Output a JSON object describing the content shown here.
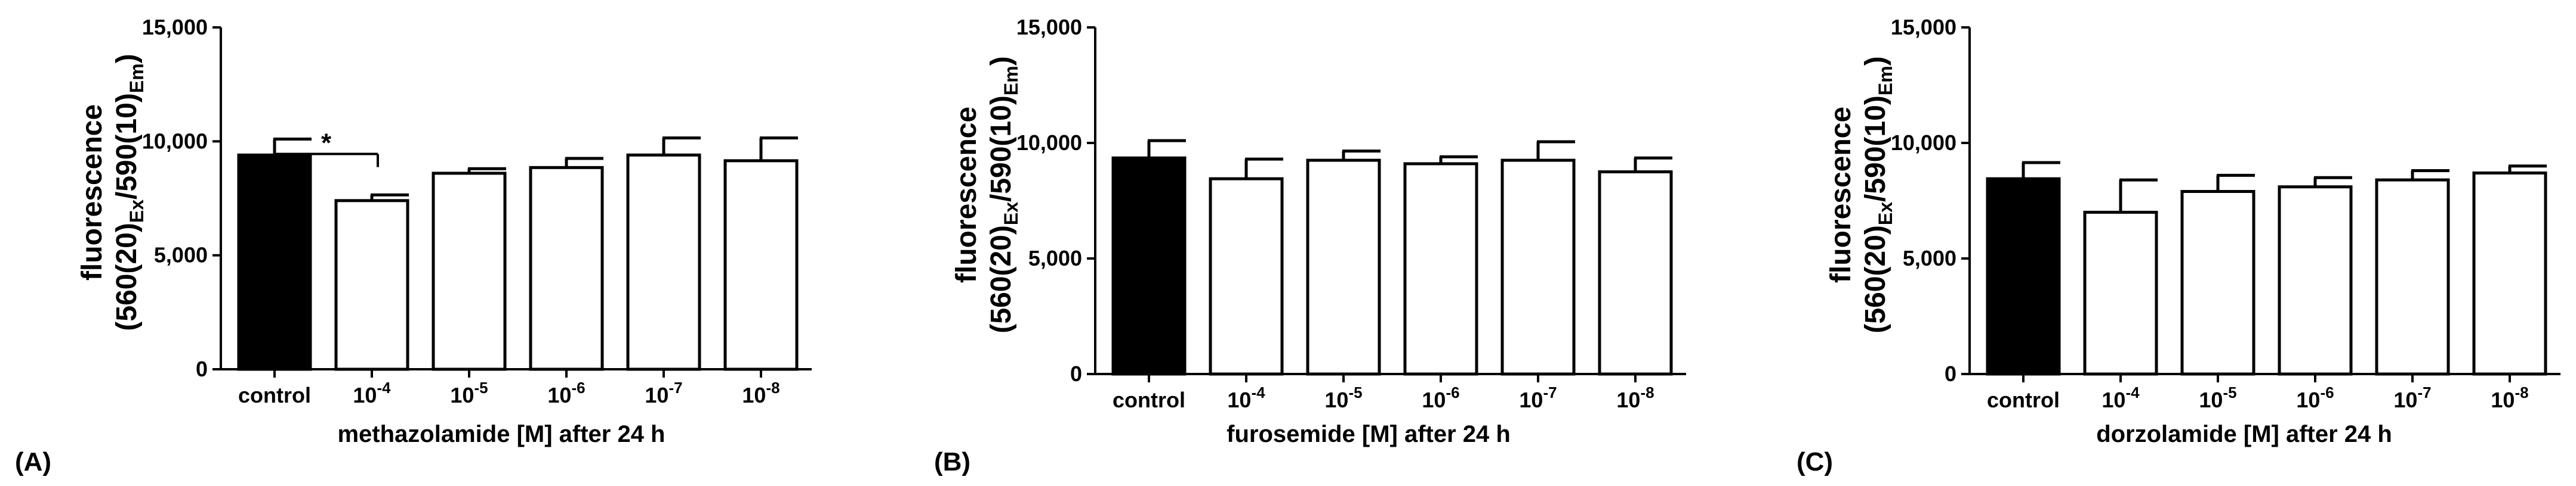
{
  "chart_data": [
    {
      "type": "bar",
      "panel_label": "(A)",
      "categories": [
        "control",
        "10^-4",
        "10^-5",
        "10^-6",
        "10^-7",
        "10^-8"
      ],
      "category_labels": [
        {
          "base": "control",
          "exp": ""
        },
        {
          "base": "10",
          "exp": "-4"
        },
        {
          "base": "10",
          "exp": "-5"
        },
        {
          "base": "10",
          "exp": "-6"
        },
        {
          "base": "10",
          "exp": "-7"
        },
        {
          "base": "10",
          "exp": "-8"
        }
      ],
      "values": [
        9400,
        7400,
        8600,
        8850,
        9400,
        9150
      ],
      "errors": [
        700,
        250,
        200,
        400,
        750,
        1000
      ],
      "bar_colors": [
        "#000000",
        "#ffffff",
        "#ffffff",
        "#ffffff",
        "#ffffff",
        "#ffffff"
      ],
      "xlabel": "methazolamide [M]  after 24 h",
      "ylabel_line1": "fluorescence",
      "ylabel_line2": {
        "a": "(560(20)",
        "a_sub": "Ex",
        "b": "/590(10)",
        "b_sub": "Em",
        "c": ")"
      },
      "ylim": [
        0,
        15000
      ],
      "yticks": [
        0,
        5000,
        10000,
        15000
      ],
      "ytick_labels": [
        "0",
        "5,000",
        "10,000",
        "15,000"
      ],
      "significance": [
        {
          "from": 0,
          "to": 1,
          "label": "*"
        }
      ]
    },
    {
      "type": "bar",
      "panel_label": "(B)",
      "categories": [
        "control",
        "10^-4",
        "10^-5",
        "10^-6",
        "10^-7",
        "10^-8"
      ],
      "category_labels": [
        {
          "base": "control",
          "exp": ""
        },
        {
          "base": "10",
          "exp": "-4"
        },
        {
          "base": "10",
          "exp": "-5"
        },
        {
          "base": "10",
          "exp": "-6"
        },
        {
          "base": "10",
          "exp": "-7"
        },
        {
          "base": "10",
          "exp": "-8"
        }
      ],
      "values": [
        9350,
        8450,
        9250,
        9100,
        9250,
        8750
      ],
      "errors": [
        750,
        850,
        400,
        300,
        800,
        600
      ],
      "bar_colors": [
        "#000000",
        "#ffffff",
        "#ffffff",
        "#ffffff",
        "#ffffff",
        "#ffffff"
      ],
      "xlabel": "furosemide [M] after 24 h",
      "ylabel_line1": "fluorescence",
      "ylabel_line2": {
        "a": "(560(20)",
        "a_sub": "Ex",
        "b": "/590(10)",
        "b_sub": "Em",
        "c": ")"
      },
      "ylim": [
        0,
        15000
      ],
      "yticks": [
        0,
        5000,
        10000,
        15000
      ],
      "ytick_labels": [
        "0",
        "5,000",
        "10,000",
        "15,000"
      ],
      "significance": []
    },
    {
      "type": "bar",
      "panel_label": "(C)",
      "categories": [
        "control",
        "10^-4",
        "10^-5",
        "10^-6",
        "10^-7",
        "10^-8"
      ],
      "category_labels": [
        {
          "base": "control",
          "exp": ""
        },
        {
          "base": "10",
          "exp": "-4"
        },
        {
          "base": "10",
          "exp": "-5"
        },
        {
          "base": "10",
          "exp": "-6"
        },
        {
          "base": "10",
          "exp": "-7"
        },
        {
          "base": "10",
          "exp": "-8"
        }
      ],
      "values": [
        8450,
        7000,
        7900,
        8100,
        8400,
        8700
      ],
      "errors": [
        700,
        1400,
        700,
        400,
        400,
        300
      ],
      "bar_colors": [
        "#000000",
        "#ffffff",
        "#ffffff",
        "#ffffff",
        "#ffffff",
        "#ffffff"
      ],
      "xlabel": "dorzolamide [M] after 24 h",
      "ylabel_line1": "fluorescence",
      "ylabel_line2": {
        "a": "(560(20)",
        "a_sub": "Ex",
        "b": "/590(10)",
        "b_sub": "Em",
        "c": ")"
      },
      "ylim": [
        0,
        15000
      ],
      "yticks": [
        0,
        5000,
        10000,
        15000
      ],
      "ytick_labels": [
        "0",
        "5,000",
        "10,000",
        "15,000"
      ],
      "significance": []
    }
  ]
}
